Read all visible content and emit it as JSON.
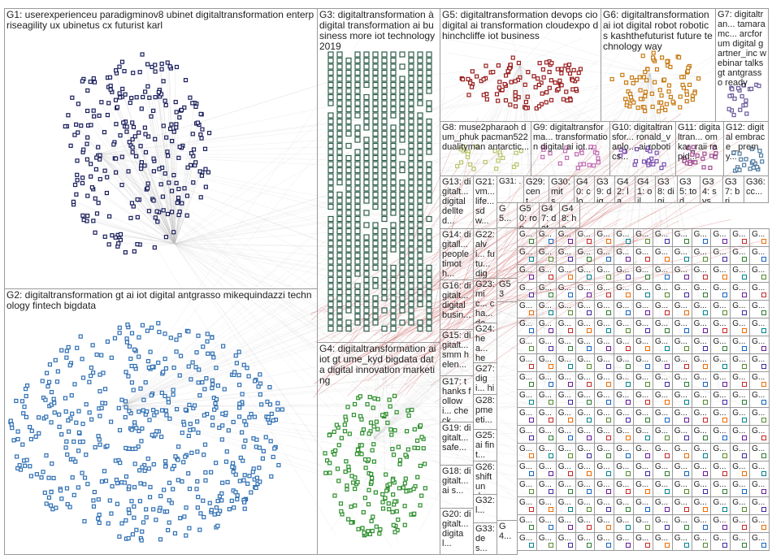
{
  "groups": [
    {
      "id": "G1",
      "text": "G1: userexperienceu paradigminov8 ubinet digitaltransformation enterpriseagility ux ubinetus cx futurist karl",
      "color": "#1a1f5c"
    },
    {
      "id": "G2",
      "text": "G2: digitaltransformation gt ai iot digital antgrasso mikequindazzi technology fintech bigdata",
      "color": "#2f6fb3"
    },
    {
      "id": "G3",
      "text": "G3: digitaltransformation à digital transformation ai business more iot technology 2019",
      "color": "#2e5e4a"
    },
    {
      "id": "G4",
      "text": "G4: digitaltransformation ai iot gt ume_kyd bigdata data digital innovation marketing",
      "color": "#2d8f2d"
    },
    {
      "id": "G5",
      "text": "G5: digitaltransformation devops cio digital ai transformation cloudexpo dhinchcliffe iot business",
      "color": "#9a1f1f"
    },
    {
      "id": "G6",
      "text": "G6: digitaltransformation ai iot digital robot robotics kashthefuturist future technology way",
      "color": "#c77a12"
    },
    {
      "id": "G7",
      "text": "G7: digitaltran... tamaramc... arcforum digital gartner_inc webinar talks gt antgrasso ready",
      "color": "#6b5a9a"
    },
    {
      "id": "G8",
      "text": "G8: muse2pharaoh dum_phuk pacman522 dualityman antarctic...",
      "color": "#b9c46a"
    },
    {
      "id": "G9",
      "text": "G9: digitaltransforma... transformation digital ai iot...",
      "color": "#c06bb0"
    },
    {
      "id": "G10",
      "text": "G10: digitaltransfor... ronald_vanlo... ai robotics...",
      "color": "#7a4fb0"
    },
    {
      "id": "G11",
      "text": "G11: digitaltran... omkar_raii rapid...",
      "color": "#a04a8f"
    },
    {
      "id": "G12",
      "text": "G12: digital embrace _premy...",
      "color": "#4f7a9f"
    },
    {
      "id": "G13",
      "text": "G13: digitalt... digital dellted...",
      "color": "#333"
    },
    {
      "id": "G14",
      "text": "G14: digitall... people timoth...",
      "color": "#333"
    },
    {
      "id": "G15",
      "text": "G15: digitalt... smm helen...",
      "color": "#333"
    },
    {
      "id": "G16",
      "text": "G16: digitalt... digital busin...",
      "color": "#333"
    },
    {
      "id": "G17",
      "text": "G17: thanks followi... check...",
      "color": "#333"
    },
    {
      "id": "G18",
      "text": "G18: digitalt... ai s...",
      "color": "#333"
    },
    {
      "id": "G19",
      "text": "G19: digitalt... safe...",
      "color": "#333"
    },
    {
      "id": "G20",
      "text": "G20: digitalt... digital...",
      "color": "#333"
    },
    {
      "id": "G21",
      "text": "G21: vm... life... sdw...",
      "color": "#333"
    },
    {
      "id": "G22",
      "text": "G22: alvi... futu... digi...",
      "color": "#333"
    },
    {
      "id": "G23",
      "text": "G23: mic... cha... dev...",
      "color": "#333"
    },
    {
      "id": "G24",
      "text": "G24: hea... hea...",
      "color": "#333"
    },
    {
      "id": "G25",
      "text": "G25: ai fint...",
      "color": "#333"
    },
    {
      "id": "G26",
      "text": "G26: shift und...",
      "color": "#333"
    },
    {
      "id": "G27",
      "text": "G27: digi... hit...",
      "color": "#333"
    },
    {
      "id": "G28",
      "text": "G28: pme eti...",
      "color": "#333"
    },
    {
      "id": "G29",
      "text": "G29: cent...",
      "color": "#333"
    },
    {
      "id": "G30",
      "text": "G30: mits...",
      "color": "#333"
    },
    {
      "id": "G31",
      "text": "G31: ...",
      "color": "#333"
    },
    {
      "id": "G32",
      "text": "G32: l...",
      "color": "#333"
    },
    {
      "id": "G33",
      "text": "G33: des...",
      "color": "#333"
    }
  ],
  "small_labels": [
    {
      "text": "G40: clo..."
    },
    {
      "text": "G39: digi..."
    },
    {
      "text": "G42: law..."
    },
    {
      "text": "G41: oil..."
    },
    {
      "text": "G38: digi..."
    },
    {
      "text": "G35: tod..."
    },
    {
      "text": "G34: sys..."
    },
    {
      "text": "G37: bri..."
    },
    {
      "text": "G36: cc..."
    },
    {
      "text": "G50: ron..."
    },
    {
      "text": "G47: dat..."
    },
    {
      "text": "G48: he..."
    },
    {
      "text": "G53"
    },
    {
      "text": "G5..."
    },
    {
      "text": "G4..."
    }
  ],
  "legend_note": "",
  "colors": {
    "edge": "#c8c8c8",
    "edge_red": "#c43a3a",
    "box_border": "#9a9a9a"
  }
}
